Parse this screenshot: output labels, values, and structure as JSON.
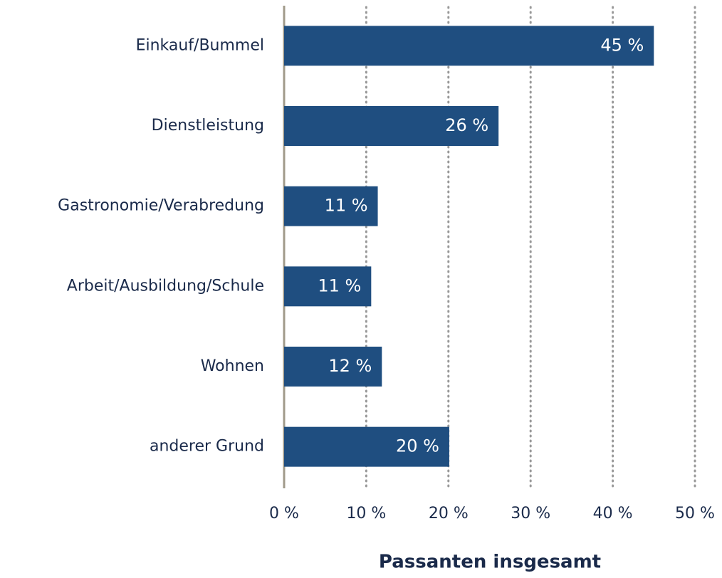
{
  "chart_data": {
    "type": "barh",
    "x_label": "Passanten insgesamt",
    "categories": [
      "Einkauf/Bummel",
      "Dienstleistung",
      "Gastronomie/Verabredung",
      "Arbeit/Ausbildung/Schule",
      "Wohnen",
      "anderer Grund"
    ],
    "values": [
      45,
      26.1,
      11.4,
      10.6,
      11.9,
      20.1
    ],
    "value_labels": [
      "45 %",
      "26 %",
      "11 %",
      "11 %",
      "12 %",
      "20 %"
    ],
    "color": "#1f4e80",
    "xlim": [
      0,
      50
    ],
    "xticks": [
      {
        "value": 0,
        "label": "0 %"
      },
      {
        "value": 10,
        "label": "10 %"
      },
      {
        "value": 20,
        "label": "20 %"
      },
      {
        "value": 30,
        "label": "30 %"
      },
      {
        "value": 40,
        "label": "40 %"
      },
      {
        "value": 50,
        "label": "50 %"
      }
    ],
    "grid": true
  }
}
